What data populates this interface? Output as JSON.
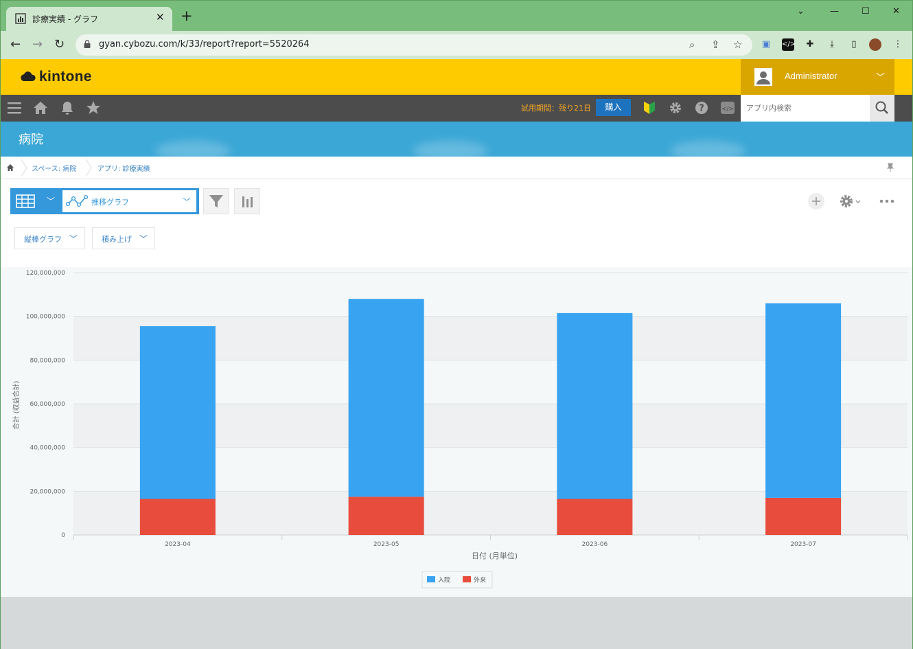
{
  "browser": {
    "tab_title": "診療実績 - グラフ",
    "url": "gyan.cybozu.com/k/33/report?report=5520264",
    "window_controls": [
      "chevron-down",
      "minimize",
      "maximize",
      "close"
    ]
  },
  "header": {
    "logo_text": "kintone",
    "username": "Administrator",
    "accent": "#fdcb00"
  },
  "nav": {
    "trial_text": "試用期間：残り21日",
    "buy_label": "購入",
    "search_placeholder": "アプリ内検索"
  },
  "space": {
    "title": "病院"
  },
  "breadcrumb": {
    "space": "スペース: 病院",
    "app": "アプリ: 診療実績"
  },
  "view": {
    "name": "推移グラフ",
    "chart_type": "縦棒グラフ",
    "stack_mode": "積み上げ"
  },
  "chart_data": {
    "type": "bar",
    "stacked": true,
    "categories": [
      "2023-04",
      "2023-05",
      "2023-06",
      "2023-07"
    ],
    "series": [
      {
        "name": "外来",
        "color": "#e74c3c",
        "values": [
          16500000,
          17500000,
          16500000,
          17000000
        ]
      },
      {
        "name": "入院",
        "color": "#37a3f1",
        "values": [
          79000000,
          90500000,
          85000000,
          89000000
        ]
      }
    ],
    "xlabel": "日付 (月単位)",
    "ylabel": "合計 (収益合計)",
    "ylim": [
      0,
      120000000
    ],
    "yticks": [
      0,
      20000000,
      40000000,
      60000000,
      80000000,
      100000000,
      120000000
    ],
    "ytick_labels": [
      "0",
      "20,000,000",
      "40,000,000",
      "60,000,000",
      "80,000,000",
      "100,000,000",
      "120,000,000"
    ],
    "legend": [
      {
        "name": "入院",
        "color": "#37a3f1"
      },
      {
        "name": "外来",
        "color": "#e74c3c"
      }
    ],
    "legend_position": "bottom-center",
    "grid": true
  }
}
